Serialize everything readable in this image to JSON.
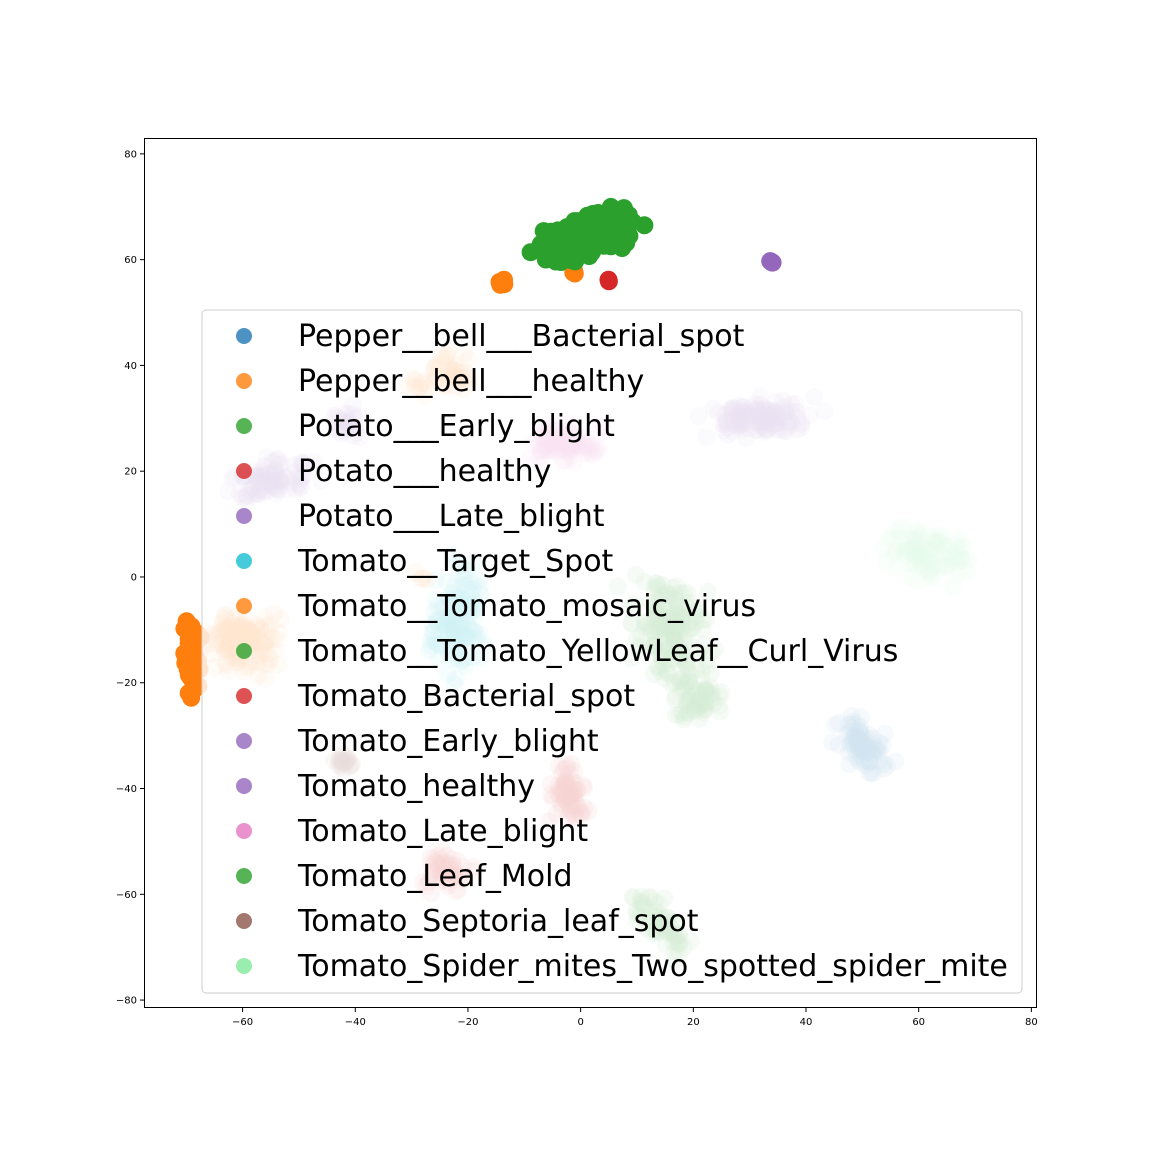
{
  "chart_data": {
    "type": "scatter",
    "title": "",
    "xlabel": "",
    "ylabel": "",
    "xlim": [
      -77.5,
      81
    ],
    "ylim": [
      -81.5,
      83
    ],
    "xticks": [
      -60,
      -40,
      -20,
      0,
      20,
      40,
      60,
      80
    ],
    "yticks": [
      80,
      60,
      40,
      20,
      0,
      -20,
      -40,
      -60,
      -80
    ],
    "xtick_labels": [
      "−60",
      "−40",
      "−20",
      "0",
      "20",
      "40",
      "60",
      "80"
    ],
    "ytick_labels": [
      "80",
      "60",
      "40",
      "20",
      "0",
      "−20",
      "−40",
      "−60",
      "−80"
    ],
    "grid": false,
    "legend_position": "center",
    "series": [
      {
        "name": "Pepper__bell___Bacterial_spot",
        "color": "#1f77b4",
        "alpha": 0.8,
        "clusters": [
          {
            "cx": 50,
            "cy": -32,
            "rx": 5,
            "ry": 8,
            "angle": 35,
            "n": 80,
            "alpha": 0.2
          }
        ]
      },
      {
        "name": "Pepper__bell___healthy",
        "color": "#ff7f0e",
        "alpha": 0.8,
        "clusters": [
          {
            "cx": -69,
            "cy": -15,
            "rx": 2,
            "ry": 8,
            "angle": 0,
            "n": 60,
            "alpha": 1.0
          },
          {
            "cx": -60,
            "cy": -12,
            "rx": 8,
            "ry": 8,
            "angle": 0,
            "n": 140,
            "alpha": 0.18
          },
          {
            "cx": -24,
            "cy": 38,
            "rx": 8,
            "ry": 5,
            "angle": 30,
            "n": 50,
            "alpha": 0.18
          },
          {
            "cx": -14,
            "cy": 56,
            "rx": 1.5,
            "ry": 1.2,
            "angle": 0,
            "n": 4,
            "alpha": 1.0
          },
          {
            "cx": -1,
            "cy": 58,
            "rx": 1.5,
            "ry": 1.2,
            "angle": 0,
            "n": 3,
            "alpha": 1.0
          }
        ]
      },
      {
        "name": "Potato___Early_blight",
        "color": "#2ca02c",
        "alpha": 0.8,
        "clusters": [
          {
            "cx": 1,
            "cy": 64,
            "rx": 12,
            "ry": 5,
            "angle": 25,
            "n": 220,
            "alpha": 1.0
          }
        ]
      },
      {
        "name": "Potato___healthy",
        "color": "#d62728",
        "alpha": 0.8,
        "clusters": [
          {
            "cx": 5,
            "cy": 56,
            "rx": 0.8,
            "ry": 0.8,
            "angle": 0,
            "n": 2,
            "alpha": 1.0
          }
        ]
      },
      {
        "name": "Potato___Late_blight",
        "color": "#9467bd",
        "alpha": 0.8,
        "clusters": [
          {
            "cx": 34,
            "cy": 59.5,
            "rx": 0.4,
            "ry": 0.4,
            "angle": 0,
            "n": 4,
            "alpha": 1.0
          }
        ]
      },
      {
        "name": "Tomato__Target_Spot",
        "color": "#17becf",
        "alpha": 0.8,
        "clusters": [
          {
            "cx": -22,
            "cy": -8,
            "rx": 6,
            "ry": 14,
            "angle": 0,
            "n": 130,
            "alpha": 0.2
          }
        ]
      },
      {
        "name": "Tomato__Tomato_mosaic_virus",
        "color": "#ff7f0e",
        "alpha": 0.8,
        "clusters": [
          {
            "cx": -29,
            "cy": 0,
            "rx": 2,
            "ry": 2,
            "angle": 0,
            "n": 4,
            "alpha": 0.2
          }
        ]
      },
      {
        "name": "Tomato__Tomato_YellowLeaf__Curl_Virus",
        "color": "#2ca02c",
        "alpha": 0.8,
        "clusters": [
          {
            "cx": 16,
            "cy": -10,
            "rx": 9,
            "ry": 15,
            "angle": 10,
            "n": 170,
            "alpha": 0.2
          },
          {
            "cx": 21,
            "cy": -23,
            "rx": 6,
            "ry": 6,
            "angle": 0,
            "n": 60,
            "alpha": 0.2
          }
        ]
      },
      {
        "name": "Tomato_Bacterial_spot",
        "color": "#d62728",
        "alpha": 0.8,
        "clusters": [
          {
            "cx": -24,
            "cy": -56,
            "rx": 6,
            "ry": 5,
            "angle": 0,
            "n": 50,
            "alpha": 0.18
          },
          {
            "cx": -2,
            "cy": -41,
            "rx": 4.5,
            "ry": 7,
            "angle": 0,
            "n": 70,
            "alpha": 0.2
          }
        ]
      },
      {
        "name": "Tomato_Early_blight",
        "color": "#9467bd",
        "alpha": 0.8,
        "clusters": [
          {
            "cx": -55,
            "cy": 19,
            "rx": 10,
            "ry": 5,
            "angle": 8,
            "n": 90,
            "alpha": 0.18
          },
          {
            "cx": 32,
            "cy": 30,
            "rx": 13,
            "ry": 5,
            "angle": 5,
            "n": 120,
            "alpha": 0.18
          }
        ]
      },
      {
        "name": "Tomato_healthy",
        "color": "#9467bd",
        "alpha": 0.8,
        "clusters": [
          {
            "cx": -42,
            "cy": 29,
            "rx": 4,
            "ry": 4,
            "angle": 0,
            "n": 30,
            "alpha": 0.18
          }
        ]
      },
      {
        "name": "Tomato_Late_blight",
        "color": "#e377c2",
        "alpha": 0.8,
        "clusters": [
          {
            "cx": -3,
            "cy": 25,
            "rx": 8,
            "ry": 5,
            "angle": 0,
            "n": 90,
            "alpha": 0.18
          }
        ]
      },
      {
        "name": "Tomato_Leaf_Mold",
        "color": "#2ca02c",
        "alpha": 0.8,
        "clusters": [
          {
            "cx": 14,
            "cy": -65,
            "rx": 4,
            "ry": 9,
            "angle": 40,
            "n": 60,
            "alpha": 0.2
          }
        ]
      },
      {
        "name": "Tomato_Septoria_leaf_spot",
        "color": "#8c564b",
        "alpha": 0.8,
        "clusters": [
          {
            "cx": -42,
            "cy": -35,
            "rx": 3,
            "ry": 2,
            "angle": 0,
            "n": 20,
            "alpha": 0.2
          }
        ]
      },
      {
        "name": "Tomato_Spider_mites_Two_spotted_spider_mite",
        "color": "#7fe89a",
        "alpha": 0.8,
        "clusters": [
          {
            "cx": 62,
            "cy": 4,
            "rx": 10,
            "ry": 7,
            "angle": -10,
            "n": 110,
            "alpha": 0.15
          }
        ]
      }
    ]
  }
}
